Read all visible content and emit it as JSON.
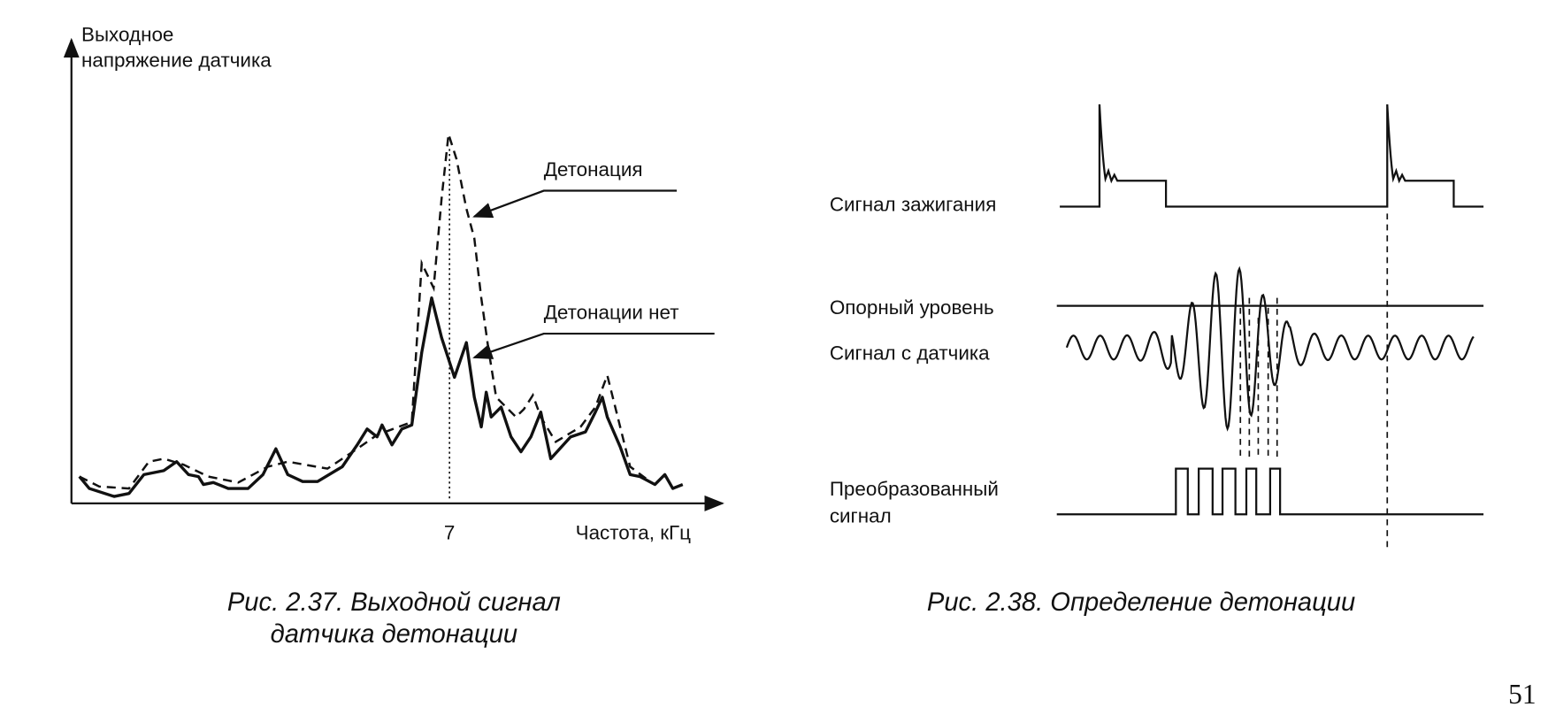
{
  "figure_1": {
    "y_axis_label": [
      "Выходное",
      "напряжение датчика"
    ],
    "x_tick": "7",
    "x_axis_label": "Частота, кГц",
    "annotations": [
      "Детонация",
      "Детонации нет"
    ],
    "caption": [
      "Рис. 2.37. Выходной сигнал",
      "датчика детонации"
    ]
  },
  "figure_2": {
    "labels": [
      "Сигнал зажигания",
      "Опорный уровень",
      "Сигнал с датчика",
      "Преобразованный",
      "сигнал"
    ],
    "caption": "Рис. 2.38. Определение детонации"
  },
  "page_number": "51"
}
